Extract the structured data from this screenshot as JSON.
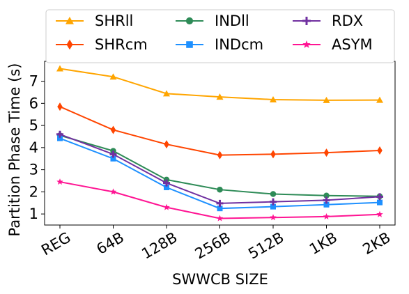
{
  "chart_data": {
    "type": "line",
    "title": "",
    "xlabel": "SWWCB SIZE",
    "ylabel": "Partition Phase Time (s)",
    "categories": [
      "REG",
      "64B",
      "128B",
      "256B",
      "512B",
      "1KB",
      "2KB"
    ],
    "ylim": [
      0.5,
      7.9
    ],
    "yticks": [
      1,
      2,
      3,
      4,
      5,
      6,
      7
    ],
    "grid": false,
    "legend_position": "top",
    "series": [
      {
        "name": "SHRll",
        "color": "#FFA500",
        "marker": "triangle",
        "values": [
          7.57,
          7.2,
          6.44,
          6.29,
          6.17,
          6.14,
          6.15
        ]
      },
      {
        "name": "SHRcm",
        "color": "#FF4500",
        "marker": "diamond",
        "values": [
          5.85,
          4.8,
          4.15,
          3.66,
          3.7,
          3.77,
          3.87
        ]
      },
      {
        "name": "INDll",
        "color": "#2E8B57",
        "marker": "circle",
        "values": [
          4.55,
          3.85,
          2.55,
          2.1,
          1.9,
          1.83,
          1.8
        ]
      },
      {
        "name": "INDcm",
        "color": "#1E90FF",
        "marker": "square",
        "values": [
          4.42,
          3.5,
          2.2,
          1.25,
          1.33,
          1.42,
          1.52
        ]
      },
      {
        "name": "RDX",
        "color": "#7030A0",
        "marker": "plus",
        "values": [
          4.6,
          3.7,
          2.4,
          1.48,
          1.55,
          1.62,
          1.78
        ]
      },
      {
        "name": "ASYM",
        "color": "#FF1493",
        "marker": "star",
        "values": [
          2.45,
          2.0,
          1.3,
          0.8,
          0.84,
          0.88,
          0.98
        ]
      }
    ]
  }
}
